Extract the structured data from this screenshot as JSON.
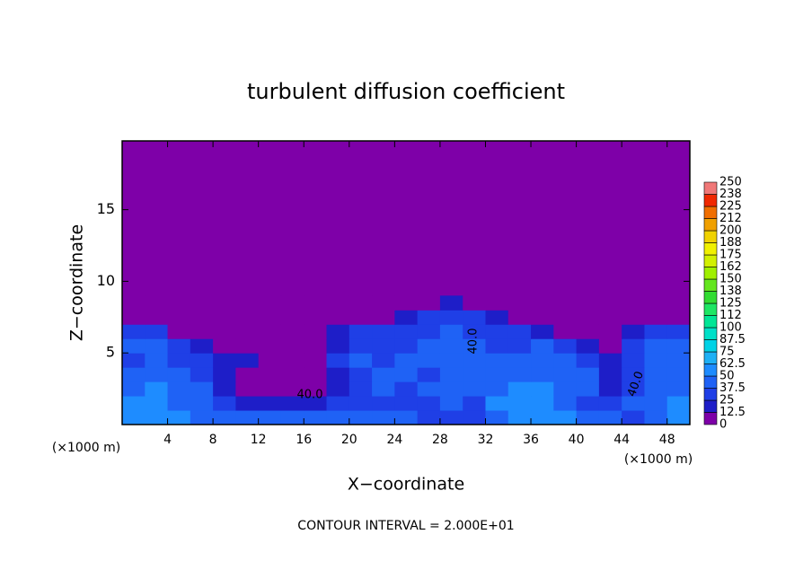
{
  "chart_data": {
    "type": "contour",
    "title": "turbulent diffusion coefficient",
    "xlabel": "X−coordinate",
    "ylabel": "Z−coordinate",
    "x_unit": "(×1000 m)",
    "footer": "CONTOUR INTERVAL = 2.000E+01",
    "xlim": [
      0,
      50
    ],
    "ylim": [
      0,
      19.8
    ],
    "xticks": [
      4,
      8,
      12,
      16,
      20,
      24,
      28,
      32,
      36,
      40,
      44,
      48
    ],
    "yticks": [
      5,
      10,
      15
    ],
    "x_edges": [
      0,
      2,
      4,
      6,
      8,
      10,
      12,
      14,
      16,
      18,
      20,
      22,
      24,
      26,
      28,
      30,
      32,
      34,
      36,
      38,
      40,
      42,
      44,
      46,
      48,
      50
    ],
    "z_edges": [
      0,
      1,
      2,
      3,
      4,
      5,
      6,
      7,
      8,
      9
    ],
    "background_value": 0,
    "values": [
      [
        60,
        55,
        50,
        45,
        45,
        45,
        42,
        40,
        40,
        40,
        40,
        40,
        40,
        35,
        30,
        30,
        45,
        50,
        55,
        60,
        45,
        40,
        35,
        40,
        55
      ],
      [
        50,
        50,
        45,
        40,
        35,
        15,
        15,
        15,
        20,
        30,
        35,
        35,
        30,
        35,
        40,
        35,
        50,
        60,
        55,
        45,
        30,
        30,
        40,
        45,
        50
      ],
      [
        45,
        50,
        45,
        40,
        15,
        5,
        5,
        5,
        10,
        20,
        30,
        40,
        35,
        40,
        40,
        40,
        45,
        55,
        50,
        40,
        40,
        20,
        35,
        45,
        45
      ],
      [
        40,
        45,
        40,
        30,
        15,
        10,
        10,
        5,
        5,
        20,
        35,
        40,
        40,
        35,
        40,
        40,
        40,
        45,
        40,
        40,
        40,
        15,
        30,
        40,
        45
      ],
      [
        35,
        40,
        35,
        25,
        20,
        15,
        5,
        5,
        5,
        25,
        40,
        35,
        40,
        40,
        45,
        40,
        40,
        40,
        40,
        40,
        35,
        20,
        30,
        40,
        40
      ],
      [
        40,
        45,
        25,
        15,
        5,
        5,
        5,
        5,
        5,
        20,
        35,
        30,
        35,
        40,
        40,
        40,
        35,
        35,
        40,
        30,
        20,
        5,
        30,
        40,
        40
      ],
      [
        35,
        30,
        5,
        0,
        0,
        0,
        0,
        0,
        5,
        15,
        30,
        25,
        30,
        35,
        40,
        35,
        30,
        30,
        20,
        10,
        5,
        5,
        20,
        35,
        35
      ],
      [
        10,
        5,
        0,
        0,
        0,
        0,
        0,
        0,
        0,
        0,
        5,
        10,
        20,
        25,
        30,
        25,
        20,
        10,
        5,
        0,
        0,
        0,
        0,
        5,
        10
      ],
      [
        0,
        0,
        0,
        0,
        0,
        0,
        0,
        0,
        0,
        0,
        0,
        0,
        0,
        10,
        15,
        10,
        5,
        0,
        0,
        0,
        0,
        0,
        0,
        0,
        0
      ]
    ],
    "levels": [
      0,
      12.5,
      25,
      37.5,
      50,
      62.5,
      75,
      87.5,
      100,
      112,
      125,
      138,
      150,
      162,
      175,
      188,
      200,
      212,
      225,
      238,
      250
    ],
    "colors": [
      "#7e00a8",
      "#1e1ec8",
      "#1f3fe6",
      "#1f62f5",
      "#1e8cff",
      "#1eb0f5",
      "#00d2e6",
      "#00e0c8",
      "#00e696",
      "#1ee664",
      "#32dc32",
      "#64e61e",
      "#a0f000",
      "#d2f000",
      "#f0f000",
      "#f0d200",
      "#f0a000",
      "#f06e00",
      "#f02800",
      "#f07878"
    ],
    "annotations": [
      "40.0",
      "40.0",
      "40.0"
    ]
  }
}
